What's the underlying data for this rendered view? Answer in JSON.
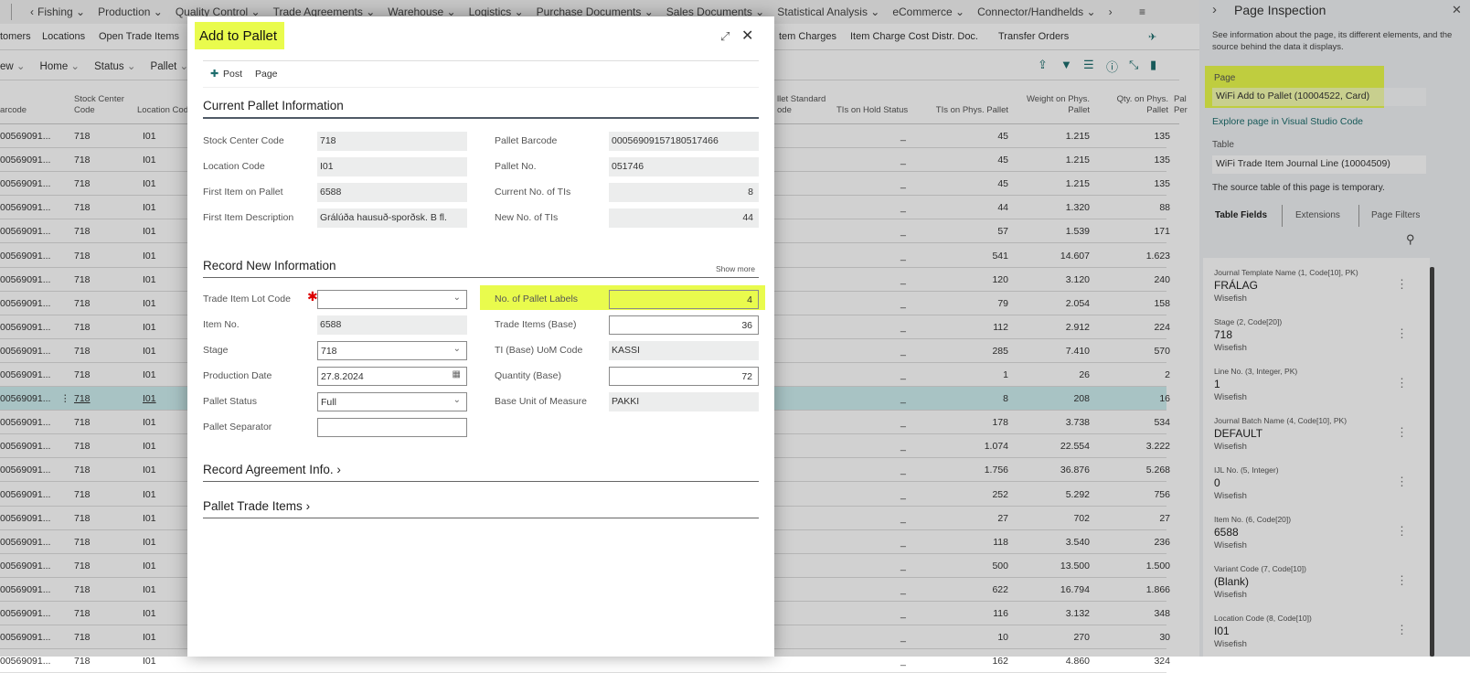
{
  "nav": {
    "items": [
      "Fishing",
      "Production",
      "Quality Control",
      "Trade Agreements",
      "Warehouse",
      "Logistics",
      "Purchase Documents",
      "Sales Documents",
      "Statistical Analysis",
      "eCommerce",
      "Connector/Handhelds"
    ]
  },
  "links": [
    "tomers",
    "Locations",
    "Open Trade Items",
    "",
    "",
    "",
    "",
    "",
    "",
    "tem Charges",
    "Item Charge Cost Distr. Doc.",
    "Transfer Orders"
  ],
  "actions": [
    "ew",
    "Home",
    "Status",
    "Pallet"
  ],
  "table": {
    "headers": {
      "barcode": "arcode",
      "stock_center": "Stock Center Code",
      "location": "Location Code",
      "pallet_std": "llet Standard ode",
      "hold": "TIs on Hold Status",
      "tis": "TIs on Phys. Pallet",
      "weight": "Weight on Phys. Pallet",
      "qty": "Qty. on Phys. Pallet",
      "per": "Pal Per"
    },
    "rows": [
      [
        "00569091...",
        "718",
        "I01",
        "_",
        "45",
        "1.215",
        "135"
      ],
      [
        "00569091...",
        "718",
        "I01",
        "_",
        "45",
        "1.215",
        "135"
      ],
      [
        "00569091...",
        "718",
        "I01",
        "_",
        "45",
        "1.215",
        "135"
      ],
      [
        "00569091...",
        "718",
        "I01",
        "_",
        "44",
        "1.320",
        "88"
      ],
      [
        "00569091...",
        "718",
        "I01",
        "_",
        "57",
        "1.539",
        "171"
      ],
      [
        "00569091...",
        "718",
        "I01",
        "_",
        "541",
        "14.607",
        "1.623"
      ],
      [
        "00569091...",
        "718",
        "I01",
        "_",
        "120",
        "3.120",
        "240"
      ],
      [
        "00569091...",
        "718",
        "I01",
        "_",
        "79",
        "2.054",
        "158"
      ],
      [
        "00569091...",
        "718",
        "I01",
        "_",
        "112",
        "2.912",
        "224"
      ],
      [
        "00569091...",
        "718",
        "I01",
        "_",
        "285",
        "7.410",
        "570"
      ],
      [
        "00569091...",
        "718",
        "I01",
        "_",
        "1",
        "26",
        "2"
      ],
      [
        "00569091...",
        "718",
        "I01",
        "_",
        "8",
        "208",
        "16"
      ],
      [
        "00569091...",
        "718",
        "I01",
        "_",
        "178",
        "3.738",
        "534"
      ],
      [
        "00569091...",
        "718",
        "I01",
        "_",
        "1.074",
        "22.554",
        "3.222"
      ],
      [
        "00569091...",
        "718",
        "I01",
        "_",
        "1.756",
        "36.876",
        "5.268"
      ],
      [
        "00569091...",
        "718",
        "I01",
        "_",
        "252",
        "5.292",
        "756"
      ],
      [
        "00569091...",
        "718",
        "I01",
        "_",
        "27",
        "702",
        "27"
      ],
      [
        "00569091...",
        "718",
        "I01",
        "_",
        "118",
        "3.540",
        "236"
      ],
      [
        "00569091...",
        "718",
        "I01",
        "_",
        "500",
        "13.500",
        "1.500"
      ],
      [
        "00569091...",
        "718",
        "I01",
        "_",
        "622",
        "16.794",
        "1.866"
      ],
      [
        "00569091...",
        "718",
        "I01",
        "_",
        "116",
        "3.132",
        "348"
      ],
      [
        "00569091...",
        "718",
        "I01",
        "_",
        "10",
        "270",
        "30"
      ],
      [
        "00569091...",
        "718",
        "I01",
        "_",
        "162",
        "4.860",
        "324"
      ]
    ],
    "selected_row": 11
  },
  "dialog": {
    "title": "Add to Pallet",
    "post": "Post",
    "page": "Page",
    "section1": "Current Pallet Information",
    "current": [
      {
        "label": "Stock Center Code",
        "value": "718"
      },
      {
        "label": "Location Code",
        "value": "I01"
      },
      {
        "label": "First Item on Pallet",
        "value": "6588"
      },
      {
        "label": "First Item Description",
        "value": "Grálúða hausuð-sporðsk. B fl."
      },
      {
        "label": "Pallet Barcode",
        "value": "00056909157180517466"
      },
      {
        "label": "Pallet No.",
        "value": "051746"
      },
      {
        "label": "Current No. of TIs",
        "value": "8"
      },
      {
        "label": "New No. of TIs",
        "value": "44"
      }
    ],
    "section2": "Record New Information",
    "show_more": "Show more",
    "record": [
      {
        "label": "Trade Item Lot Code",
        "value": ""
      },
      {
        "label": "Item No.",
        "value": "6588"
      },
      {
        "label": "Stage",
        "value": "718"
      },
      {
        "label": "Production Date",
        "value": "27.8.2024"
      },
      {
        "label": "Pallet Status",
        "value": "Full"
      },
      {
        "label": "Pallet Separator",
        "value": ""
      },
      {
        "label": "No. of Pallet Labels",
        "value": "4"
      },
      {
        "label": "Trade Items (Base)",
        "value": "36"
      },
      {
        "label": "TI (Base) UoM Code",
        "value": "KASSI"
      },
      {
        "label": "Quantity (Base)",
        "value": "72"
      },
      {
        "label": "Base Unit of Measure",
        "value": "PAKKI"
      }
    ],
    "section3": "Record Agreement Info.",
    "section4": "Pallet Trade Items"
  },
  "panel": {
    "title": "Page Inspection",
    "desc": "See information about the page, its different elements, and the source behind the data it displays.",
    "page_label": "Page",
    "page_value": "WiFi Add to Pallet (10004522, Card)",
    "explore": "Explore page in Visual Studio Code",
    "table_label": "Table",
    "table_value": "WiFi Trade Item Journal Line (10004509)",
    "temp_note": "The source table of this page is temporary.",
    "tabs": [
      "Table Fields",
      "Extensions",
      "Page Filters"
    ],
    "fields": [
      {
        "name": "Journal Template Name (1, Code[10], PK)",
        "value": "FRÁLAG",
        "source": "Wisefish"
      },
      {
        "name": "Stage (2, Code[20])",
        "value": "718",
        "source": "Wisefish"
      },
      {
        "name": "Line No. (3, Integer, PK)",
        "value": "1",
        "source": "Wisefish"
      },
      {
        "name": "Journal Batch Name (4, Code[10], PK)",
        "value": "DEFAULT",
        "source": "Wisefish"
      },
      {
        "name": "IJL No. (5, Integer)",
        "value": "0",
        "source": "Wisefish"
      },
      {
        "name": "Item No. (6, Code[20])",
        "value": "6588",
        "source": "Wisefish"
      },
      {
        "name": "Variant Code (7, Code[10])",
        "value": "(Blank)",
        "source": "Wisefish"
      },
      {
        "name": "Location Code (8, Code[10])",
        "value": "I01",
        "source": "Wisefish"
      }
    ]
  },
  "colors": {
    "highlight": "#e9fb4d",
    "accent": "#1d6d6d",
    "selected_row": "#cdeef0"
  }
}
